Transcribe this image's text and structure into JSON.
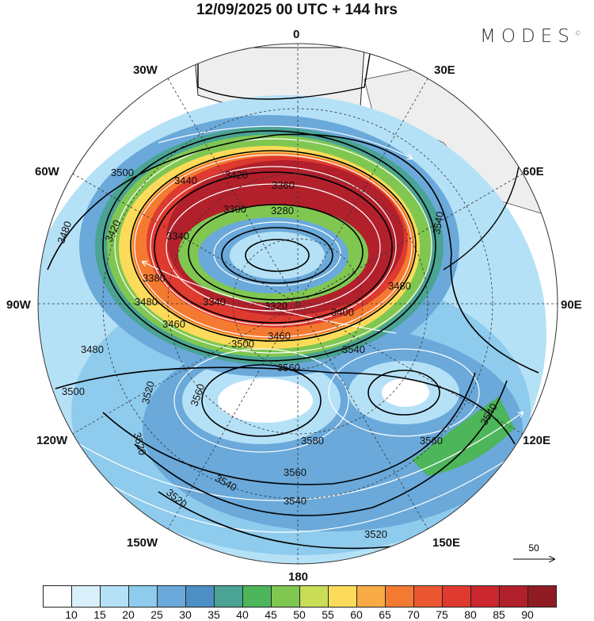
{
  "title": "12/09/2025  00 UTC  + 144 hrs",
  "logo": "MODES",
  "logo_mark": "©",
  "longitude_labels": {
    "0": "0",
    "30E": "30E",
    "60E": "60E",
    "90E": "90E",
    "120E": "120E",
    "150E": "150E",
    "180": "180",
    "150W": "150W",
    "120W": "120W",
    "90W": "90W",
    "60W": "60W",
    "30W": "30W"
  },
  "contour_labels": [
    "3500",
    "3480",
    "3420",
    "3440",
    "3420",
    "3360",
    "3300",
    "3280",
    "3340",
    "3380",
    "3480",
    "3460",
    "3340",
    "3320",
    "3460",
    "3400",
    "3480",
    "3540",
    "3500",
    "3480",
    "3500",
    "3520",
    "3560",
    "3540",
    "3560",
    "3580",
    "3560",
    "3540",
    "3520",
    "3520",
    "3540",
    "3540",
    "3520",
    "3560"
  ],
  "reference_vector": {
    "label": "50"
  },
  "colorbar": {
    "ticks": [
      "10",
      "15",
      "20",
      "25",
      "30",
      "35",
      "40",
      "45",
      "50",
      "55",
      "60",
      "65",
      "70",
      "75",
      "80",
      "85",
      "90"
    ],
    "colors": [
      "#ffffff",
      "#d9f0fb",
      "#b5e1f7",
      "#8ecbed",
      "#6aa9da",
      "#4d8fc5",
      "#4aa393",
      "#4db55a",
      "#80c751",
      "#c9dd57",
      "#fcdb5a",
      "#f8aa45",
      "#f57a31",
      "#eb5730",
      "#de3a30",
      "#cc2630",
      "#b2202c",
      "#8e1c22"
    ]
  }
}
